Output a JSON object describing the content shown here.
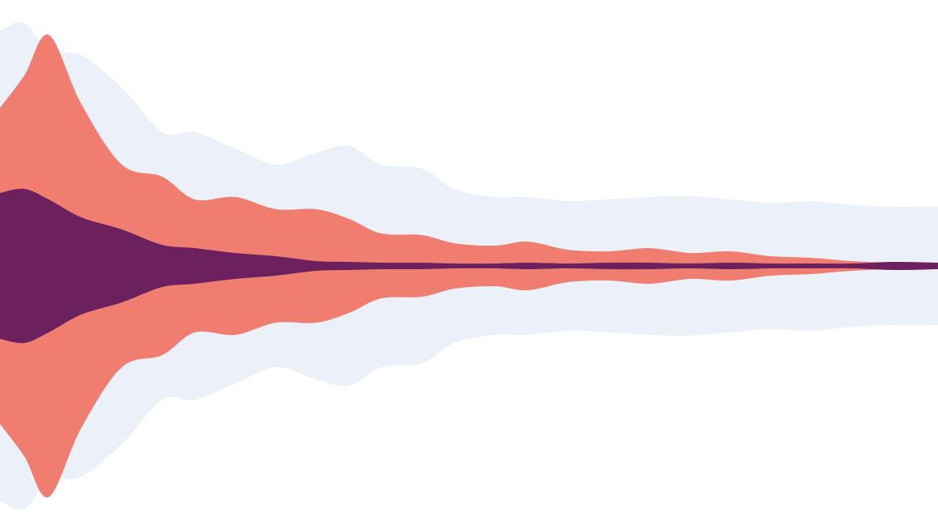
{
  "chart_data": {
    "type": "area",
    "layout": "centered-streamgraph",
    "x": [
      0,
      30,
      60,
      100,
      150,
      200,
      240,
      290,
      340,
      390,
      430,
      470,
      520,
      560,
      610,
      650,
      700,
      750,
      800,
      850,
      900,
      950,
      1000,
      1050,
      1100,
      1156
    ],
    "series": [
      {
        "fill": "#ecf0f9",
        "half_widths": [
          290,
          300,
          265,
          260,
          220,
          165,
          165,
          145,
          125,
          140,
          148,
          125,
          120,
          95,
          85,
          85,
          80,
          82,
          85,
          86,
          82,
          78,
          80,
          75,
          73,
          73
        ]
      },
      {
        "fill": "#ef7e71",
        "half_widths": [
          195,
          235,
          285,
          200,
          125,
          110,
          82,
          85,
          70,
          70,
          58,
          40,
          38,
          28,
          25,
          30,
          20,
          18,
          22,
          16,
          18,
          12,
          10,
          6,
          4,
          4
        ]
      },
      {
        "fill": "#6c205e",
        "half_widths": [
          90,
          95,
          82,
          60,
          45,
          26,
          22,
          16,
          12,
          6,
          5,
          4,
          4,
          3,
          3,
          4,
          3,
          4,
          4,
          3,
          4,
          3,
          3,
          3,
          5,
          4
        ]
      }
    ],
    "center_y": 328,
    "ylim": [
      -325,
      325
    ],
    "xlim": [
      0,
      1156
    ],
    "grid": false,
    "legend": "none"
  }
}
